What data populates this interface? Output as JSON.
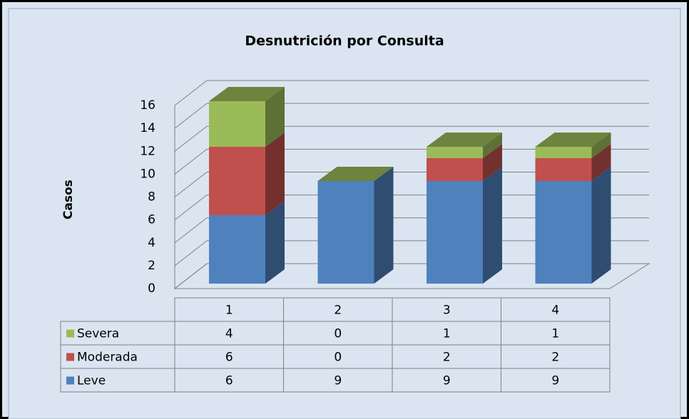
{
  "chart_data": {
    "type": "bar3d_stacked",
    "title": "Desnutrición por Consulta",
    "y_label": "Casos",
    "categories": [
      "1",
      "2",
      "3",
      "4"
    ],
    "series": [
      {
        "name": "Leve",
        "color": "#4f81bd",
        "values": [
          6,
          9,
          9,
          9
        ]
      },
      {
        "name": "Moderada",
        "color": "#c0504d",
        "values": [
          6,
          0,
          2,
          2
        ]
      },
      {
        "name": "Severa",
        "color": "#9bbb59",
        "values": [
          4,
          0,
          1,
          1
        ]
      }
    ],
    "ylim": [
      0,
      16
    ],
    "yticks": [
      0,
      2,
      4,
      6,
      8,
      10,
      12,
      14,
      16
    ],
    "grid": true,
    "data_table": true
  }
}
